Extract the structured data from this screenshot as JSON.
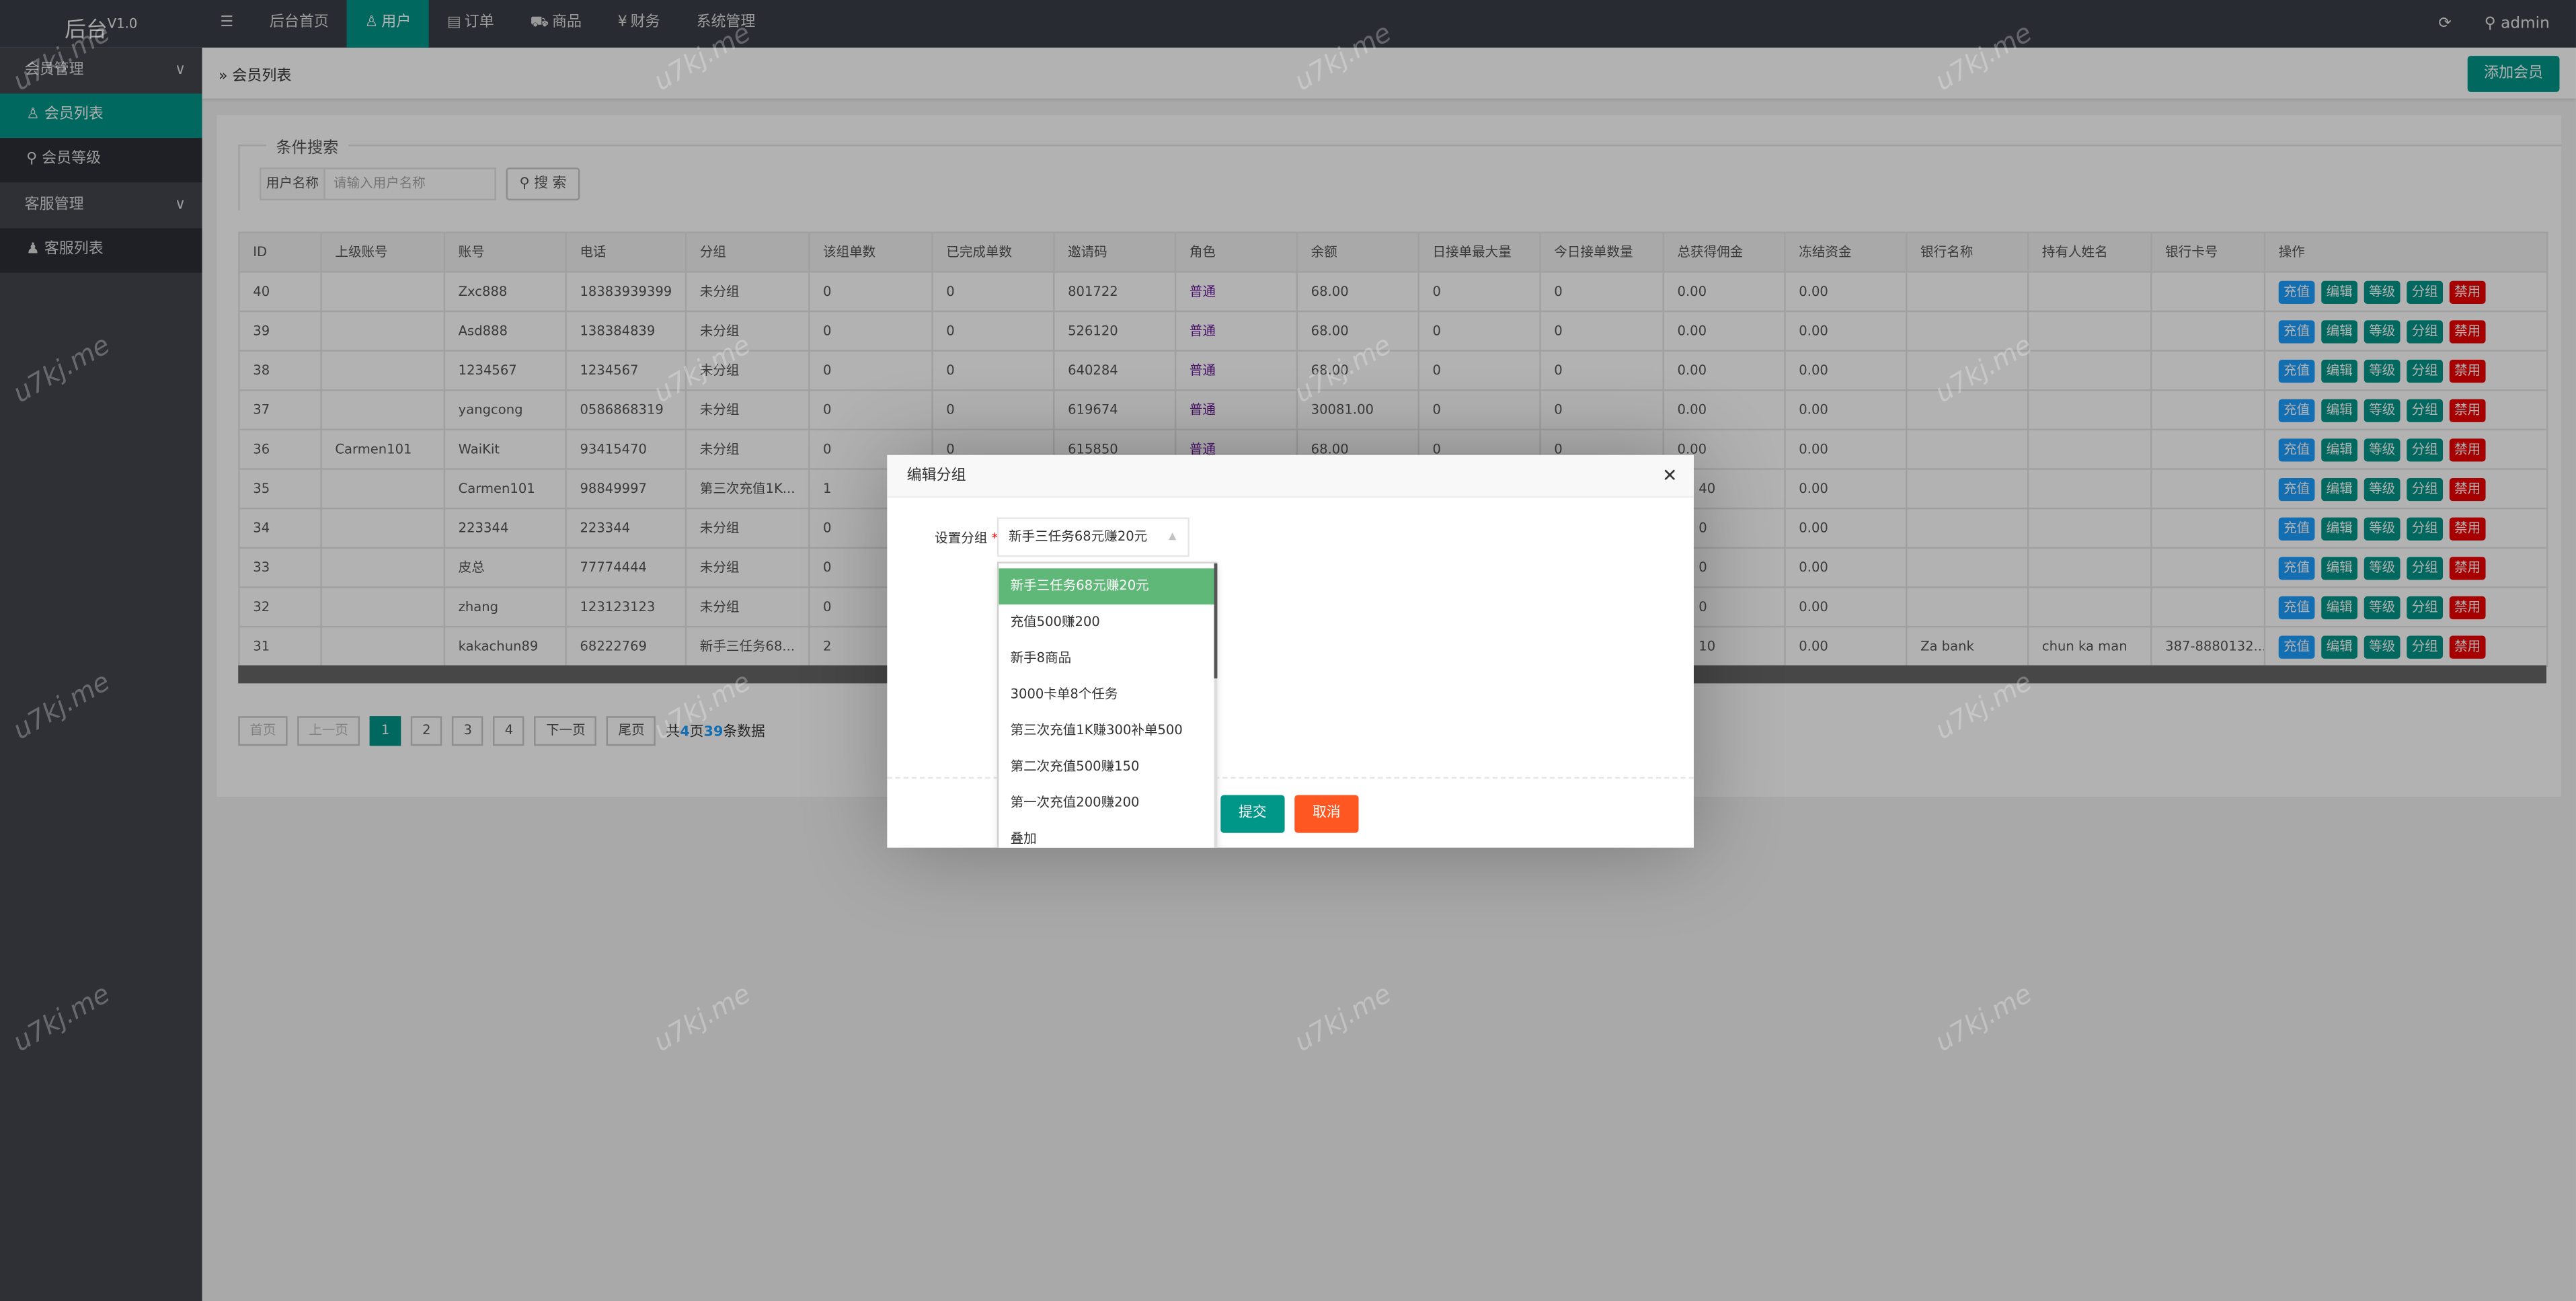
{
  "app": {
    "title": "后台",
    "version": "V1.0",
    "user": "admin"
  },
  "top_nav": [
    {
      "icon": "menu-icon",
      "label": ""
    },
    {
      "label": "后台首页"
    },
    {
      "icon": "user-icon",
      "label": "用户",
      "active": true
    },
    {
      "icon": "document-icon",
      "label": "订单"
    },
    {
      "icon": "cart-icon",
      "label": "商品"
    },
    {
      "icon": "yen-icon",
      "label": "财务"
    },
    {
      "label": "系统管理"
    }
  ],
  "sidebar": [
    {
      "label": "会员管理",
      "children": [
        {
          "label": "会员列表",
          "icon": "user-icon",
          "active": true
        },
        {
          "label": "会员等级",
          "icon": "medal-icon"
        }
      ]
    },
    {
      "label": "客服管理",
      "children": [
        {
          "label": "客服列表",
          "icon": "users-icon"
        }
      ]
    }
  ],
  "breadcrumb": "会员列表",
  "add_button": "添加会员",
  "search": {
    "legend": "条件搜索",
    "label": "用户名称",
    "placeholder": "请输入用户名称",
    "button": "搜 索"
  },
  "table": {
    "headers": [
      "ID",
      "上级账号",
      "账号",
      "电话",
      "分组",
      "该组单数",
      "已完成单数",
      "邀请码",
      "角色",
      "余额",
      "日接单最大量",
      "今日接单数量",
      "总获得佣金",
      "冻结资金",
      "银行名称",
      "持有人姓名",
      "银行卡号",
      "操作"
    ],
    "rows": [
      [
        "40",
        "",
        "Zxc888",
        "18383939399",
        "未分组",
        "0",
        "0",
        "801722",
        "普通",
        "68.00",
        "0",
        "0",
        "0.00",
        "0.00",
        "",
        "",
        ""
      ],
      [
        "39",
        "",
        "Asd888",
        "138384839",
        "未分组",
        "0",
        "0",
        "526120",
        "普通",
        "68.00",
        "0",
        "0",
        "0.00",
        "0.00",
        "",
        "",
        ""
      ],
      [
        "38",
        "",
        "1234567",
        "1234567",
        "未分组",
        "0",
        "0",
        "640284",
        "普通",
        "68.00",
        "0",
        "0",
        "0.00",
        "0.00",
        "",
        "",
        ""
      ],
      [
        "37",
        "",
        "yangcong",
        "0586868319",
        "未分组",
        "0",
        "0",
        "619674",
        "普通",
        "30081.00",
        "0",
        "0",
        "0.00",
        "0.00",
        "",
        "",
        ""
      ],
      [
        "36",
        "Carmen101",
        "WaiKit",
        "93415470",
        "未分组",
        "0",
        "0",
        "615850",
        "普通",
        "68.00",
        "0",
        "0",
        "0.00",
        "0.00",
        "",
        "",
        ""
      ],
      [
        "35",
        "",
        "Carmen101",
        "98849997",
        "第三次充值1K...",
        "1",
        "",
        "",
        "",
        "",
        "",
        "",
        "40",
        "0.00",
        "",
        "",
        ""
      ],
      [
        "34",
        "",
        "223344",
        "223344",
        "未分组",
        "0",
        "",
        "",
        "",
        "",
        "",
        "",
        "0",
        "0.00",
        "",
        "",
        ""
      ],
      [
        "33",
        "",
        "皮总",
        "77774444",
        "未分组",
        "0",
        "",
        "",
        "",
        "",
        "",
        "",
        "0",
        "0.00",
        "",
        "",
        ""
      ],
      [
        "32",
        "",
        "zhang",
        "123123123",
        "未分组",
        "0",
        "",
        "",
        "",
        "",
        "",
        "",
        "0",
        "0.00",
        "",
        "",
        ""
      ],
      [
        "31",
        "",
        "kakachun89",
        "68222769",
        "新手三任务68...",
        "2",
        "",
        "",
        "",
        "",
        "",
        "",
        "10",
        "0.00",
        "Za bank",
        "chun ka man",
        "387-8880132..."
      ]
    ],
    "actions": [
      {
        "label": "充值",
        "color": "#1E9FFF"
      },
      {
        "label": "编辑",
        "color": "#009688"
      },
      {
        "label": "等级",
        "color": "#009688"
      },
      {
        "label": "分组",
        "color": "#009688"
      },
      {
        "label": "禁用",
        "color": "#ee0000"
      }
    ]
  },
  "pagination": {
    "first": "首页",
    "prev": "上一页",
    "pages": [
      "1",
      "2",
      "3",
      "4"
    ],
    "current": "1",
    "next": "下一页",
    "last": "尾页",
    "info_prefix": "共",
    "total_pages": "4",
    "info_mid": "页",
    "total_records": "39",
    "info_suffix": "条数据"
  },
  "modal": {
    "title": "编辑分组",
    "field_label": "设置分组",
    "required_mark": "*",
    "selected": "新手三任务68元赚20元",
    "options": [
      "新手三任务68元赚20元",
      "充值500赚200",
      "新手8商品",
      "3000卡单8个任务",
      "第三次充值1K赚300补单500",
      "第二次充值500赚150",
      "第一次充值200赚200",
      "叠加"
    ],
    "submit": "提交",
    "cancel": "取消",
    "submit_color": "#009688",
    "cancel_color": "#FF5722"
  },
  "watermark": "u7kj.me",
  "colors": {
    "accent": "#009688",
    "header": "#3c3e48",
    "sidebar": "#42454e"
  }
}
